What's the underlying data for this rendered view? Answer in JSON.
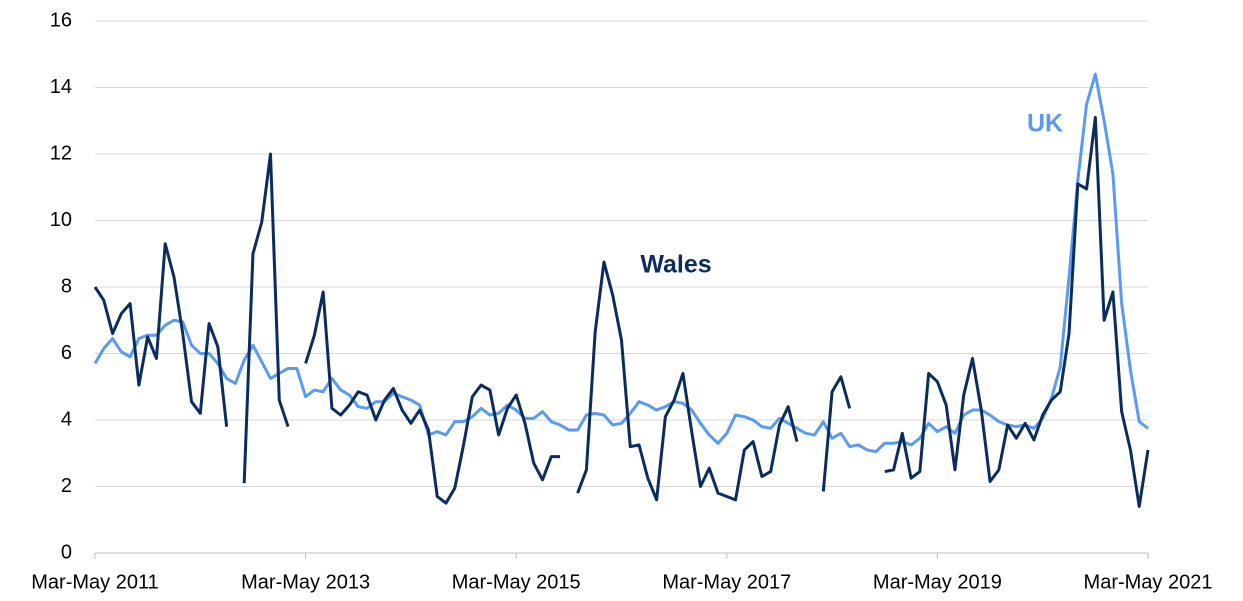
{
  "chart_data": {
    "type": "line",
    "categories": [
      "Mar-May 2011",
      null,
      null,
      null,
      null,
      null,
      null,
      null,
      null,
      null,
      null,
      null,
      null,
      null,
      null,
      null,
      null,
      null,
      null,
      null,
      null,
      null,
      null,
      null,
      "Mar-May 2013",
      null,
      null,
      null,
      null,
      null,
      null,
      null,
      null,
      null,
      null,
      null,
      null,
      null,
      null,
      null,
      null,
      null,
      null,
      null,
      null,
      null,
      null,
      null,
      "Mar-May 2015",
      null,
      null,
      null,
      null,
      null,
      null,
      null,
      null,
      null,
      null,
      null,
      null,
      null,
      null,
      null,
      null,
      null,
      null,
      null,
      null,
      null,
      null,
      null,
      "Mar-May 2017",
      null,
      null,
      null,
      null,
      null,
      null,
      null,
      null,
      null,
      null,
      null,
      null,
      null,
      null,
      null,
      null,
      null,
      null,
      null,
      null,
      null,
      null,
      null,
      "Mar-May 2019",
      null,
      null,
      null,
      null,
      null,
      null,
      null,
      null,
      null,
      null,
      null,
      null,
      null,
      null,
      null,
      null,
      null,
      null,
      null,
      null,
      null,
      null,
      null,
      "Mar-May 2021"
    ],
    "series": [
      {
        "name": "UK",
        "color": "#5b9bef",
        "values": [
          5.7,
          6.15,
          6.45,
          6.05,
          5.9,
          6.45,
          6.55,
          6.55,
          6.85,
          7.0,
          6.95,
          6.25,
          6.0,
          6.0,
          5.7,
          5.25,
          5.1,
          5.8,
          6.25,
          5.75,
          5.25,
          5.4,
          5.55,
          5.55,
          4.7,
          4.9,
          4.85,
          5.25,
          4.9,
          4.75,
          4.4,
          4.35,
          4.55,
          4.55,
          4.8,
          4.7,
          4.6,
          4.45,
          3.55,
          3.65,
          3.55,
          3.95,
          3.95,
          4.1,
          4.35,
          4.15,
          4.2,
          4.45,
          4.3,
          4.05,
          4.05,
          4.25,
          3.95,
          3.85,
          3.7,
          3.7,
          4.15,
          4.2,
          4.15,
          3.85,
          3.9,
          4.2,
          4.55,
          4.45,
          4.3,
          4.4,
          4.55,
          4.5,
          4.3,
          3.9,
          3.55,
          3.3,
          3.6,
          4.15,
          4.1,
          4.0,
          3.8,
          3.75,
          4.05,
          3.9,
          3.75,
          3.6,
          3.55,
          3.95,
          3.45,
          3.6,
          3.2,
          3.25,
          3.1,
          3.05,
          3.3,
          3.3,
          3.35,
          3.25,
          3.45,
          3.9,
          3.65,
          3.8,
          3.6,
          4.15,
          4.3,
          4.3,
          4.15,
          3.95,
          3.85,
          3.8,
          3.85,
          3.75,
          4.05,
          4.65,
          5.6,
          8.3,
          11.2,
          13.5,
          14.4,
          13.0,
          11.4,
          7.5,
          5.5,
          3.95,
          3.75
        ]
      },
      {
        "name": "Wales",
        "color": "#0b2d5e",
        "values": [
          8.0,
          7.6,
          6.6,
          7.2,
          7.5,
          5.05,
          6.5,
          5.85,
          9.3,
          8.3,
          6.6,
          4.55,
          4.2,
          6.9,
          6.2,
          3.8,
          null,
          2.1,
          9.0,
          9.95,
          12.0,
          4.6,
          3.8,
          null,
          5.7,
          6.55,
          7.85,
          4.35,
          4.15,
          4.45,
          4.85,
          4.75,
          4.0,
          4.6,
          4.95,
          4.3,
          3.9,
          4.3,
          3.7,
          1.7,
          1.5,
          1.95,
          3.25,
          4.7,
          5.05,
          4.9,
          3.55,
          4.35,
          4.75,
          3.9,
          2.7,
          2.2,
          2.9,
          2.9,
          null,
          1.8,
          2.5,
          6.65,
          8.75,
          7.75,
          6.4,
          3.2,
          3.25,
          2.25,
          1.6,
          4.1,
          4.6,
          5.4,
          3.65,
          2.0,
          2.55,
          1.8,
          1.7,
          1.6,
          3.1,
          3.35,
          2.3,
          2.45,
          3.85,
          4.4,
          3.35,
          null,
          null,
          1.85,
          4.85,
          5.3,
          4.35,
          null,
          null,
          null,
          2.45,
          2.5,
          3.6,
          2.25,
          2.45,
          5.4,
          5.15,
          4.45,
          2.5,
          4.75,
          5.85,
          4.3,
          2.15,
          2.5,
          3.85,
          3.45,
          3.9,
          3.4,
          4.15,
          4.6,
          4.85,
          6.6,
          11.1,
          10.95,
          13.1,
          7.0,
          7.85,
          4.25,
          3.1,
          1.4,
          3.1
        ]
      }
    ],
    "ylim": [
      0,
      16
    ],
    "yticks": [
      0,
      2,
      4,
      6,
      8,
      10,
      12,
      14,
      16
    ],
    "grid": true
  }
}
